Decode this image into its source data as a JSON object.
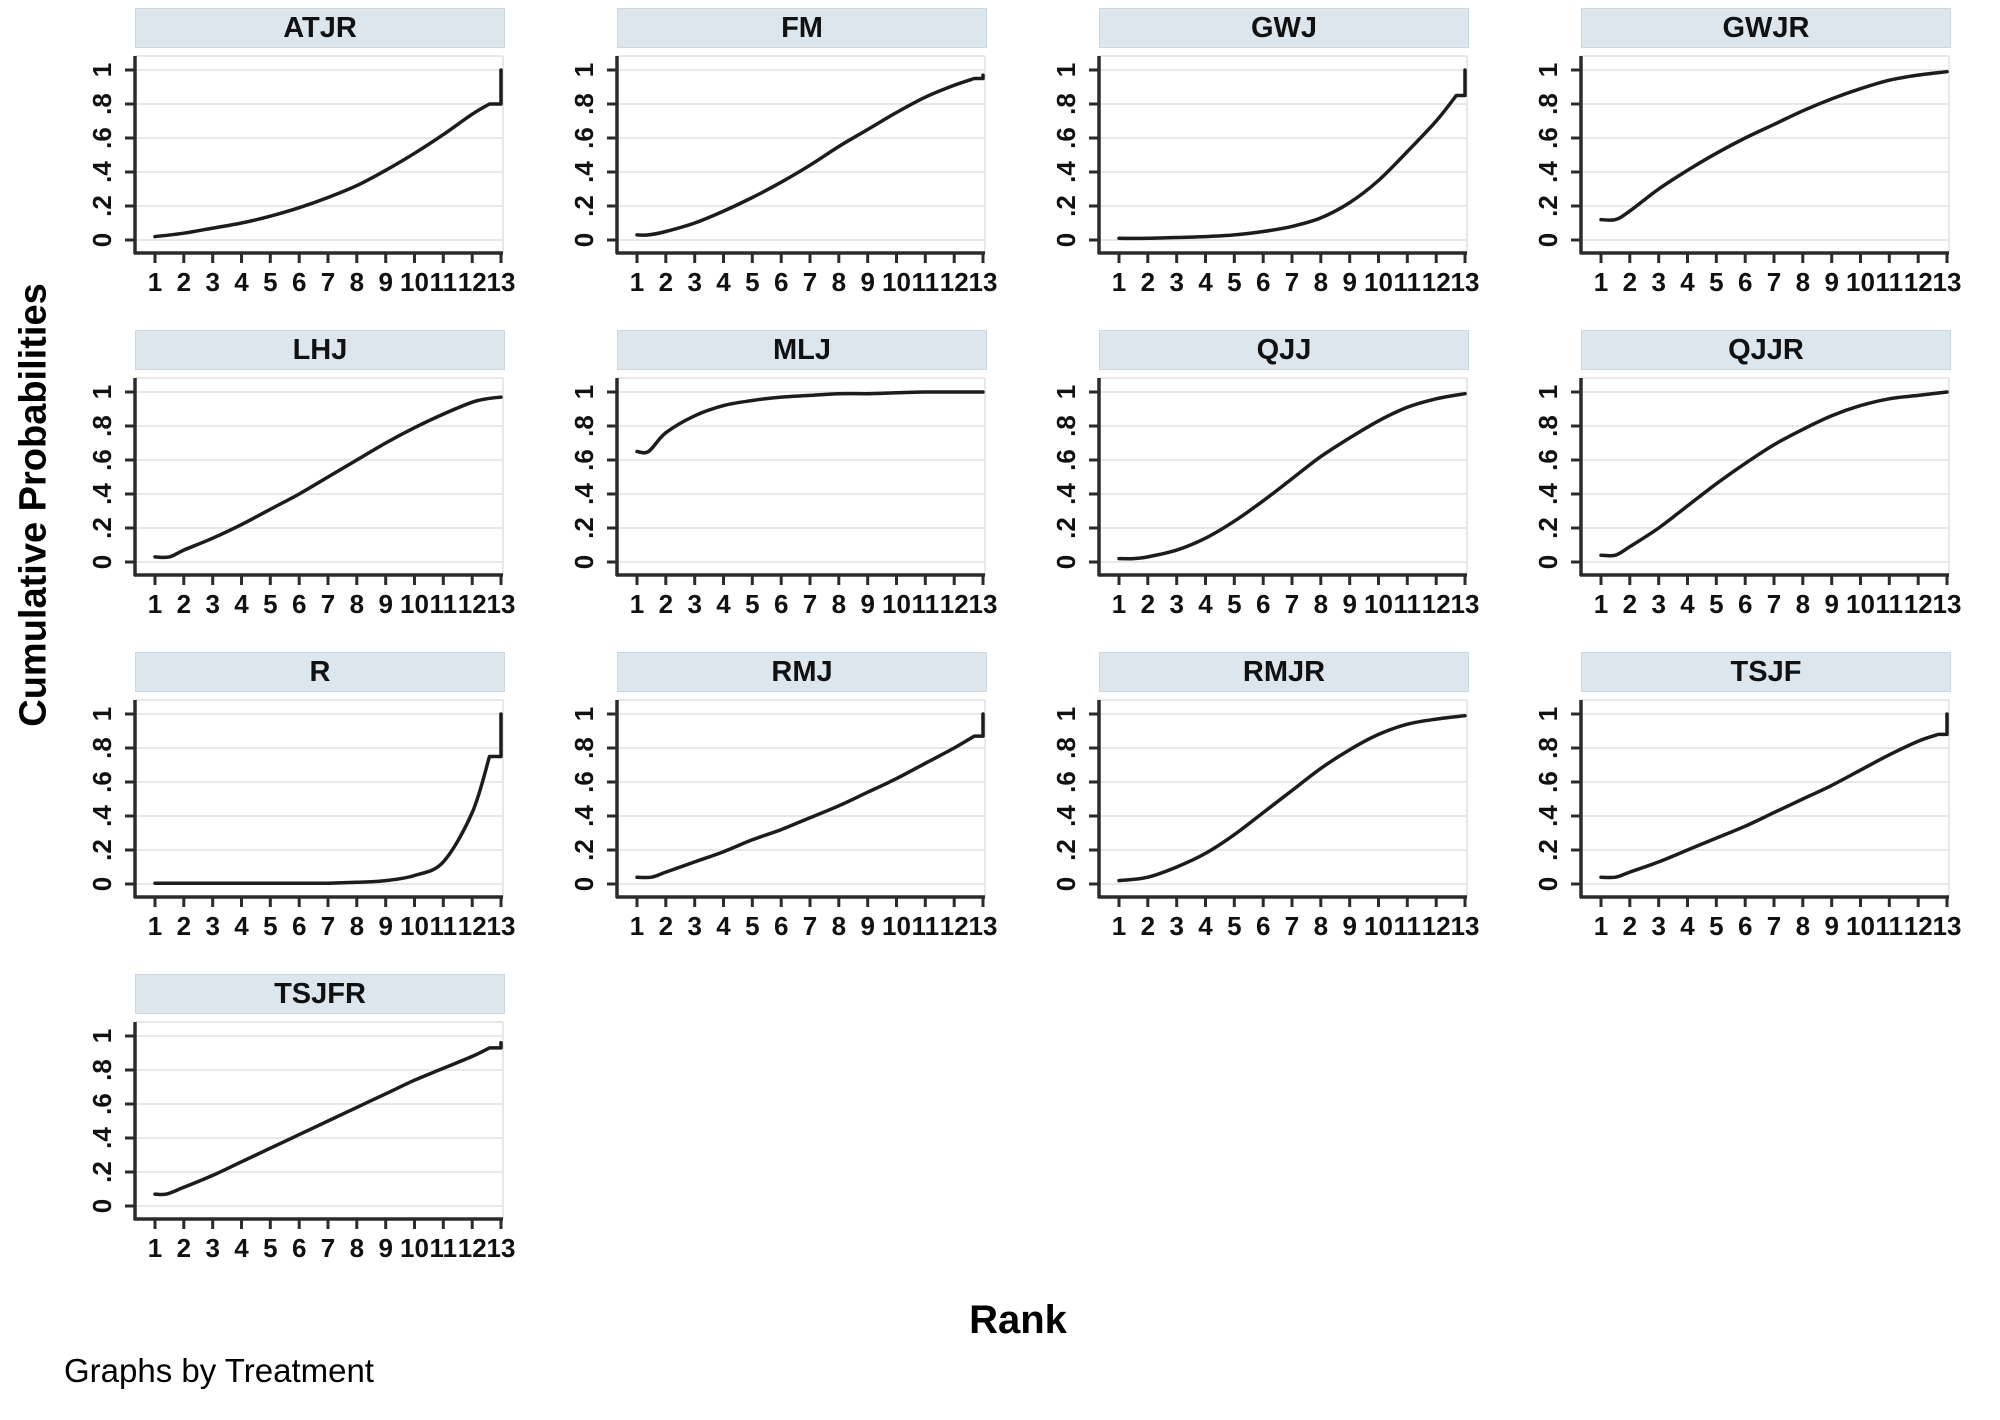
{
  "chart_data": {
    "type": "line",
    "layout": "small-multiples-grid",
    "grid": {
      "columns": 4,
      "rows": 4
    },
    "xlabel": "Rank",
    "ylabel": "Cumulative Probabilities",
    "note": "Graphs by Treatment",
    "xlim": [
      1,
      13
    ],
    "ylim": [
      0,
      1
    ],
    "grid_on": true,
    "yticks": {
      "values": [
        0,
        0.2,
        0.4,
        0.6,
        0.8,
        1
      ],
      "labels": [
        "0",
        ".2",
        ".4",
        ".6",
        ".8",
        "1"
      ]
    },
    "xticks": {
      "values": [
        1,
        2,
        3,
        4,
        5,
        6,
        7,
        8,
        9,
        10,
        11,
        12,
        13
      ],
      "labels": [
        "1",
        "2",
        "3",
        "4",
        "5",
        "6",
        "7",
        "8",
        "9",
        "10",
        "11",
        "12",
        "13"
      ]
    },
    "colors": {
      "header_bg": "#dce6ec",
      "header_border": "#cdd9e0",
      "line": "#1c1c1c",
      "gridline": "#e6e9e9",
      "axis": "#2b2b2b",
      "plot_border": "#dde2e5",
      "text": "#000000"
    },
    "panels": [
      {
        "title": "ATJR",
        "points": [
          [
            1,
            0.02
          ],
          [
            2,
            0.04
          ],
          [
            3,
            0.07
          ],
          [
            4,
            0.1
          ],
          [
            5,
            0.14
          ],
          [
            6,
            0.19
          ],
          [
            7,
            0.25
          ],
          [
            8,
            0.32
          ],
          [
            9,
            0.41
          ],
          [
            10,
            0.51
          ],
          [
            11,
            0.62
          ],
          [
            12,
            0.74
          ],
          [
            12.6,
            0.8
          ]
        ],
        "tail": [
          [
            13,
            0.8
          ],
          [
            13,
            1.0
          ]
        ]
      },
      {
        "title": "FM",
        "points": [
          [
            1,
            0.03
          ],
          [
            1.4,
            0.03
          ],
          [
            2,
            0.05
          ],
          [
            3,
            0.1
          ],
          [
            4,
            0.17
          ],
          [
            5,
            0.25
          ],
          [
            6,
            0.34
          ],
          [
            7,
            0.44
          ],
          [
            8,
            0.55
          ],
          [
            9,
            0.65
          ],
          [
            10,
            0.75
          ],
          [
            11,
            0.84
          ],
          [
            12,
            0.91
          ],
          [
            12.7,
            0.95
          ]
        ],
        "tail": [
          [
            13,
            0.95
          ],
          [
            13,
            0.97
          ]
        ]
      },
      {
        "title": "GWJ",
        "points": [
          [
            1,
            0.01
          ],
          [
            2,
            0.01
          ],
          [
            3,
            0.015
          ],
          [
            4,
            0.02
          ],
          [
            5,
            0.03
          ],
          [
            6,
            0.05
          ],
          [
            7,
            0.08
          ],
          [
            8,
            0.13
          ],
          [
            9,
            0.22
          ],
          [
            10,
            0.35
          ],
          [
            11,
            0.52
          ],
          [
            12,
            0.7
          ],
          [
            12.7,
            0.85
          ]
        ],
        "tail": [
          [
            13,
            0.85
          ],
          [
            13,
            1.0
          ]
        ]
      },
      {
        "title": "GWJR",
        "points": [
          [
            1,
            0.12
          ],
          [
            1.5,
            0.12
          ],
          [
            2,
            0.17
          ],
          [
            3,
            0.3
          ],
          [
            4,
            0.41
          ],
          [
            5,
            0.51
          ],
          [
            6,
            0.6
          ],
          [
            7,
            0.68
          ],
          [
            8,
            0.76
          ],
          [
            9,
            0.83
          ],
          [
            10,
            0.89
          ],
          [
            11,
            0.94
          ],
          [
            12,
            0.97
          ],
          [
            13,
            0.99
          ]
        ],
        "tail": []
      },
      {
        "title": "LHJ",
        "points": [
          [
            1,
            0.03
          ],
          [
            1.5,
            0.03
          ],
          [
            2,
            0.07
          ],
          [
            3,
            0.14
          ],
          [
            4,
            0.22
          ],
          [
            5,
            0.31
          ],
          [
            6,
            0.4
          ],
          [
            7,
            0.5
          ],
          [
            8,
            0.6
          ],
          [
            9,
            0.7
          ],
          [
            10,
            0.79
          ],
          [
            11,
            0.87
          ],
          [
            12,
            0.94
          ],
          [
            12.5,
            0.96
          ],
          [
            13,
            0.97
          ]
        ],
        "tail": []
      },
      {
        "title": "MLJ",
        "points": [
          [
            1,
            0.65
          ],
          [
            1.4,
            0.65
          ],
          [
            2,
            0.76
          ],
          [
            3,
            0.86
          ],
          [
            4,
            0.92
          ],
          [
            5,
            0.95
          ],
          [
            6,
            0.97
          ],
          [
            7,
            0.98
          ],
          [
            8,
            0.99
          ],
          [
            9,
            0.99
          ],
          [
            10,
            0.995
          ],
          [
            11,
            1.0
          ],
          [
            12,
            1.0
          ],
          [
            13,
            1.0
          ]
        ],
        "tail": []
      },
      {
        "title": "QJJ",
        "points": [
          [
            1,
            0.02
          ],
          [
            1.5,
            0.02
          ],
          [
            2,
            0.03
          ],
          [
            3,
            0.07
          ],
          [
            4,
            0.14
          ],
          [
            5,
            0.24
          ],
          [
            6,
            0.36
          ],
          [
            7,
            0.49
          ],
          [
            8,
            0.62
          ],
          [
            9,
            0.73
          ],
          [
            10,
            0.83
          ],
          [
            11,
            0.91
          ],
          [
            12,
            0.96
          ],
          [
            13,
            0.99
          ]
        ],
        "tail": []
      },
      {
        "title": "QJJR",
        "points": [
          [
            1,
            0.04
          ],
          [
            1.5,
            0.04
          ],
          [
            2,
            0.09
          ],
          [
            3,
            0.2
          ],
          [
            4,
            0.33
          ],
          [
            5,
            0.46
          ],
          [
            6,
            0.58
          ],
          [
            7,
            0.69
          ],
          [
            8,
            0.78
          ],
          [
            9,
            0.86
          ],
          [
            10,
            0.92
          ],
          [
            11,
            0.96
          ],
          [
            12,
            0.98
          ],
          [
            13,
            1.0
          ]
        ],
        "tail": []
      },
      {
        "title": "R",
        "points": [
          [
            1,
            0.005
          ],
          [
            2,
            0.005
          ],
          [
            3,
            0.005
          ],
          [
            4,
            0.005
          ],
          [
            5,
            0.005
          ],
          [
            6,
            0.005
          ],
          [
            7,
            0.005
          ],
          [
            8,
            0.01
          ],
          [
            9,
            0.02
          ],
          [
            10,
            0.05
          ],
          [
            11,
            0.13
          ],
          [
            12,
            0.42
          ],
          [
            12.6,
            0.75
          ]
        ],
        "tail": [
          [
            13,
            0.75
          ],
          [
            13,
            1.0
          ]
        ]
      },
      {
        "title": "RMJ",
        "points": [
          [
            1,
            0.04
          ],
          [
            1.5,
            0.04
          ],
          [
            2,
            0.07
          ],
          [
            3,
            0.13
          ],
          [
            4,
            0.19
          ],
          [
            5,
            0.26
          ],
          [
            6,
            0.32
          ],
          [
            7,
            0.39
          ],
          [
            8,
            0.46
          ],
          [
            9,
            0.54
          ],
          [
            10,
            0.62
          ],
          [
            11,
            0.71
          ],
          [
            12,
            0.8
          ],
          [
            12.7,
            0.87
          ]
        ],
        "tail": [
          [
            13,
            0.87
          ],
          [
            13,
            1.0
          ]
        ]
      },
      {
        "title": "RMJR",
        "points": [
          [
            1,
            0.02
          ],
          [
            2,
            0.04
          ],
          [
            3,
            0.1
          ],
          [
            4,
            0.18
          ],
          [
            5,
            0.29
          ],
          [
            6,
            0.42
          ],
          [
            7,
            0.55
          ],
          [
            8,
            0.68
          ],
          [
            9,
            0.79
          ],
          [
            10,
            0.88
          ],
          [
            11,
            0.94
          ],
          [
            12,
            0.97
          ],
          [
            13,
            0.99
          ]
        ],
        "tail": []
      },
      {
        "title": "TSJF",
        "points": [
          [
            1,
            0.04
          ],
          [
            1.5,
            0.04
          ],
          [
            2,
            0.07
          ],
          [
            3,
            0.13
          ],
          [
            4,
            0.2
          ],
          [
            5,
            0.27
          ],
          [
            6,
            0.34
          ],
          [
            7,
            0.42
          ],
          [
            8,
            0.5
          ],
          [
            9,
            0.58
          ],
          [
            10,
            0.67
          ],
          [
            11,
            0.76
          ],
          [
            12,
            0.84
          ],
          [
            12.7,
            0.88
          ]
        ],
        "tail": [
          [
            13,
            0.88
          ],
          [
            13,
            1.0
          ]
        ]
      },
      {
        "title": "TSJFR",
        "points": [
          [
            1,
            0.07
          ],
          [
            1.4,
            0.07
          ],
          [
            2,
            0.11
          ],
          [
            3,
            0.18
          ],
          [
            4,
            0.26
          ],
          [
            5,
            0.34
          ],
          [
            6,
            0.42
          ],
          [
            7,
            0.5
          ],
          [
            8,
            0.58
          ],
          [
            9,
            0.66
          ],
          [
            10,
            0.74
          ],
          [
            11,
            0.81
          ],
          [
            12,
            0.88
          ],
          [
            12.6,
            0.93
          ]
        ],
        "tail": [
          [
            13,
            0.93
          ],
          [
            13,
            0.96
          ]
        ]
      }
    ]
  }
}
